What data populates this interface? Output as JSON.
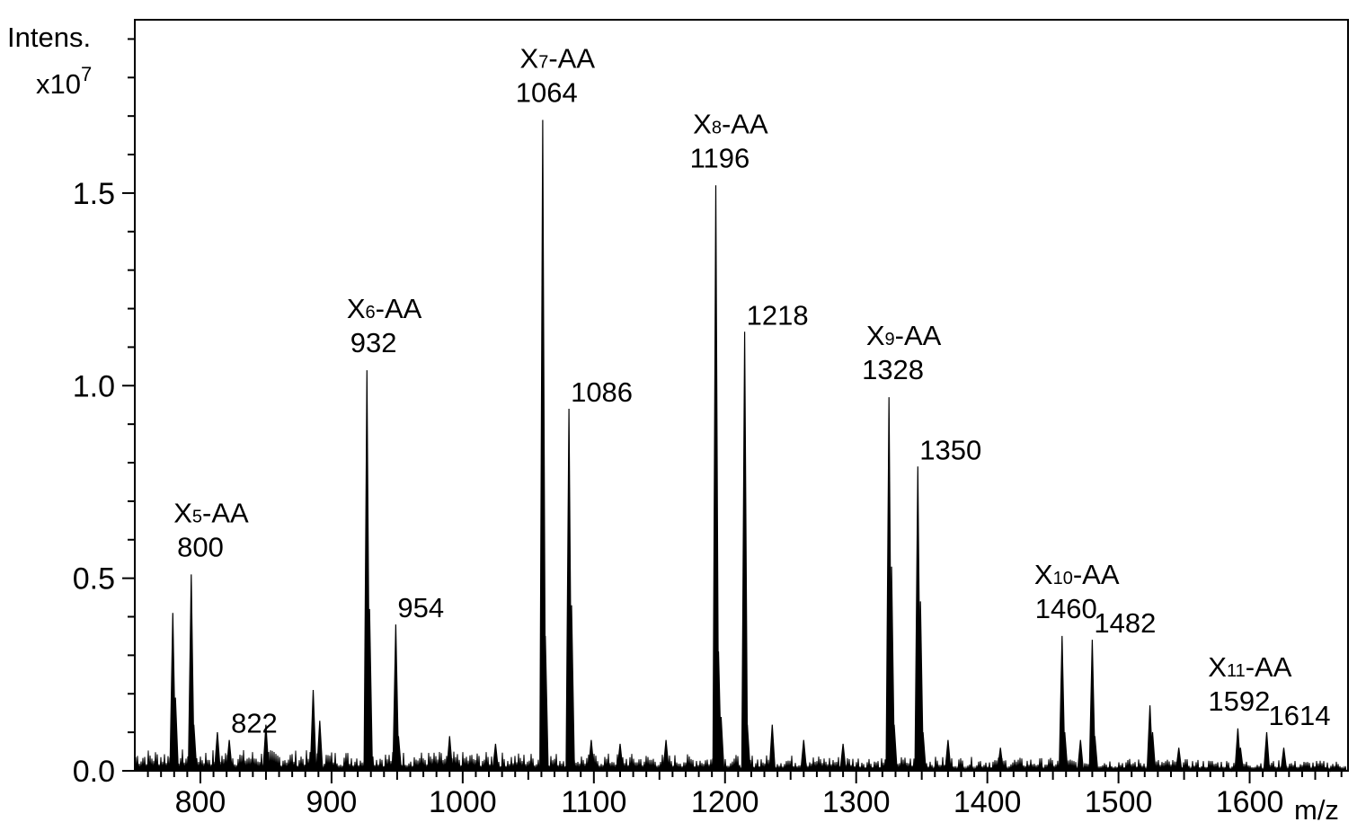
{
  "chart_data": {
    "type": "line",
    "title": "",
    "ylabel": "Intens.",
    "yscale": "x10",
    "yscale_exp": "7",
    "xunit": "m/z",
    "xlim": [
      750,
      1675
    ],
    "ylim": [
      0.0,
      1.95
    ],
    "x_ticks": [
      800,
      900,
      1000,
      1100,
      1200,
      1300,
      1400,
      1500,
      1600
    ],
    "x_tick_labels": [
      "800",
      "900",
      "1000",
      "1100",
      "1200",
      "1300",
      "1400",
      "1500",
      "1600"
    ],
    "y_ticks": [
      0.0,
      0.5,
      1.0,
      1.5
    ],
    "y_tick_labels": [
      "0.0",
      "0.5",
      "1.0",
      "1.5"
    ],
    "grid": false,
    "legend": "none",
    "line_color": "#000000",
    "series": [
      {
        "peaks": [
          {
            "x": 779,
            "y": 0.41
          },
          {
            "x": 781,
            "y": 0.19
          },
          {
            "x": 793,
            "y": 0.51
          },
          {
            "x": 795,
            "y": 0.12
          },
          {
            "x": 813,
            "y": 0.1
          },
          {
            "x": 822,
            "y": 0.08
          },
          {
            "x": 850,
            "y": 0.12
          },
          {
            "x": 886,
            "y": 0.21
          },
          {
            "x": 891,
            "y": 0.13
          },
          {
            "x": 927,
            "y": 1.04
          },
          {
            "x": 929,
            "y": 0.42
          },
          {
            "x": 949,
            "y": 0.38
          },
          {
            "x": 951,
            "y": 0.09
          },
          {
            "x": 990,
            "y": 0.09
          },
          {
            "x": 1025,
            "y": 0.07
          },
          {
            "x": 1061,
            "y": 1.69
          },
          {
            "x": 1063,
            "y": 0.35
          },
          {
            "x": 1081,
            "y": 0.94
          },
          {
            "x": 1083,
            "y": 0.43
          },
          {
            "x": 1098,
            "y": 0.08
          },
          {
            "x": 1120,
            "y": 0.07
          },
          {
            "x": 1155,
            "y": 0.08
          },
          {
            "x": 1193,
            "y": 1.52
          },
          {
            "x": 1195,
            "y": 0.31
          },
          {
            "x": 1197,
            "y": 0.14
          },
          {
            "x": 1215,
            "y": 1.14
          },
          {
            "x": 1217,
            "y": 0.12
          },
          {
            "x": 1236,
            "y": 0.12
          },
          {
            "x": 1260,
            "y": 0.08
          },
          {
            "x": 1290,
            "y": 0.07
          },
          {
            "x": 1325,
            "y": 0.97
          },
          {
            "x": 1327,
            "y": 0.53
          },
          {
            "x": 1329,
            "y": 0.12
          },
          {
            "x": 1347,
            "y": 0.79
          },
          {
            "x": 1349,
            "y": 0.44
          },
          {
            "x": 1351,
            "y": 0.1
          },
          {
            "x": 1370,
            "y": 0.08
          },
          {
            "x": 1410,
            "y": 0.06
          },
          {
            "x": 1457,
            "y": 0.35
          },
          {
            "x": 1459,
            "y": 0.1
          },
          {
            "x": 1471,
            "y": 0.08
          },
          {
            "x": 1480,
            "y": 0.34
          },
          {
            "x": 1482,
            "y": 0.09
          },
          {
            "x": 1524,
            "y": 0.17
          },
          {
            "x": 1526,
            "y": 0.1
          },
          {
            "x": 1546,
            "y": 0.06
          },
          {
            "x": 1591,
            "y": 0.11
          },
          {
            "x": 1593,
            "y": 0.06
          },
          {
            "x": 1613,
            "y": 0.1
          },
          {
            "x": 1626,
            "y": 0.06
          }
        ]
      }
    ],
    "annotations": [
      {
        "label_main": "X",
        "label_sub": "5",
        "label_suffix": "-AA",
        "x": 793,
        "y": 0.51,
        "group_x": 800,
        "mass": "800"
      },
      {
        "label_main": "X",
        "label_sub": "6",
        "label_suffix": "-AA",
        "x": 927,
        "y": 1.04,
        "group_x": 932,
        "mass": "932"
      },
      {
        "label_main": "X",
        "label_sub": "7",
        "label_suffix": "-AA",
        "x": 1061,
        "y": 1.69,
        "group_x": 1064,
        "mass": "1064"
      },
      {
        "label_main": "X",
        "label_sub": "8",
        "label_suffix": "-AA",
        "x": 1193,
        "y": 1.52,
        "group_x": 1196,
        "mass": "1196"
      },
      {
        "label_main": "X",
        "label_sub": "9",
        "label_suffix": "-AA",
        "x": 1325,
        "y": 0.97,
        "group_x": 1328,
        "mass": "1328"
      },
      {
        "label_main": "X",
        "label_sub": "10",
        "label_suffix": "-AA",
        "x": 1457,
        "y": 0.35,
        "group_x": 1460,
        "mass": "1460"
      },
      {
        "label_main": "X",
        "label_sub": "11",
        "label_suffix": "-AA",
        "x": 1591,
        "y": 0.11,
        "group_x": 1592,
        "mass": "1592"
      }
    ],
    "peak_labels": [
      {
        "text": "822",
        "x": 822,
        "y": 0.08
      },
      {
        "text": "954",
        "x": 949,
        "y": 0.38
      },
      {
        "text": "1086",
        "x": 1081,
        "y": 0.94
      },
      {
        "text": "1218",
        "x": 1215,
        "y": 1.14
      },
      {
        "text": "1350",
        "x": 1347,
        "y": 0.79
      },
      {
        "text": "1482",
        "x": 1480,
        "y": 0.34
      },
      {
        "text": "1614",
        "x": 1613,
        "y": 0.1
      }
    ]
  }
}
